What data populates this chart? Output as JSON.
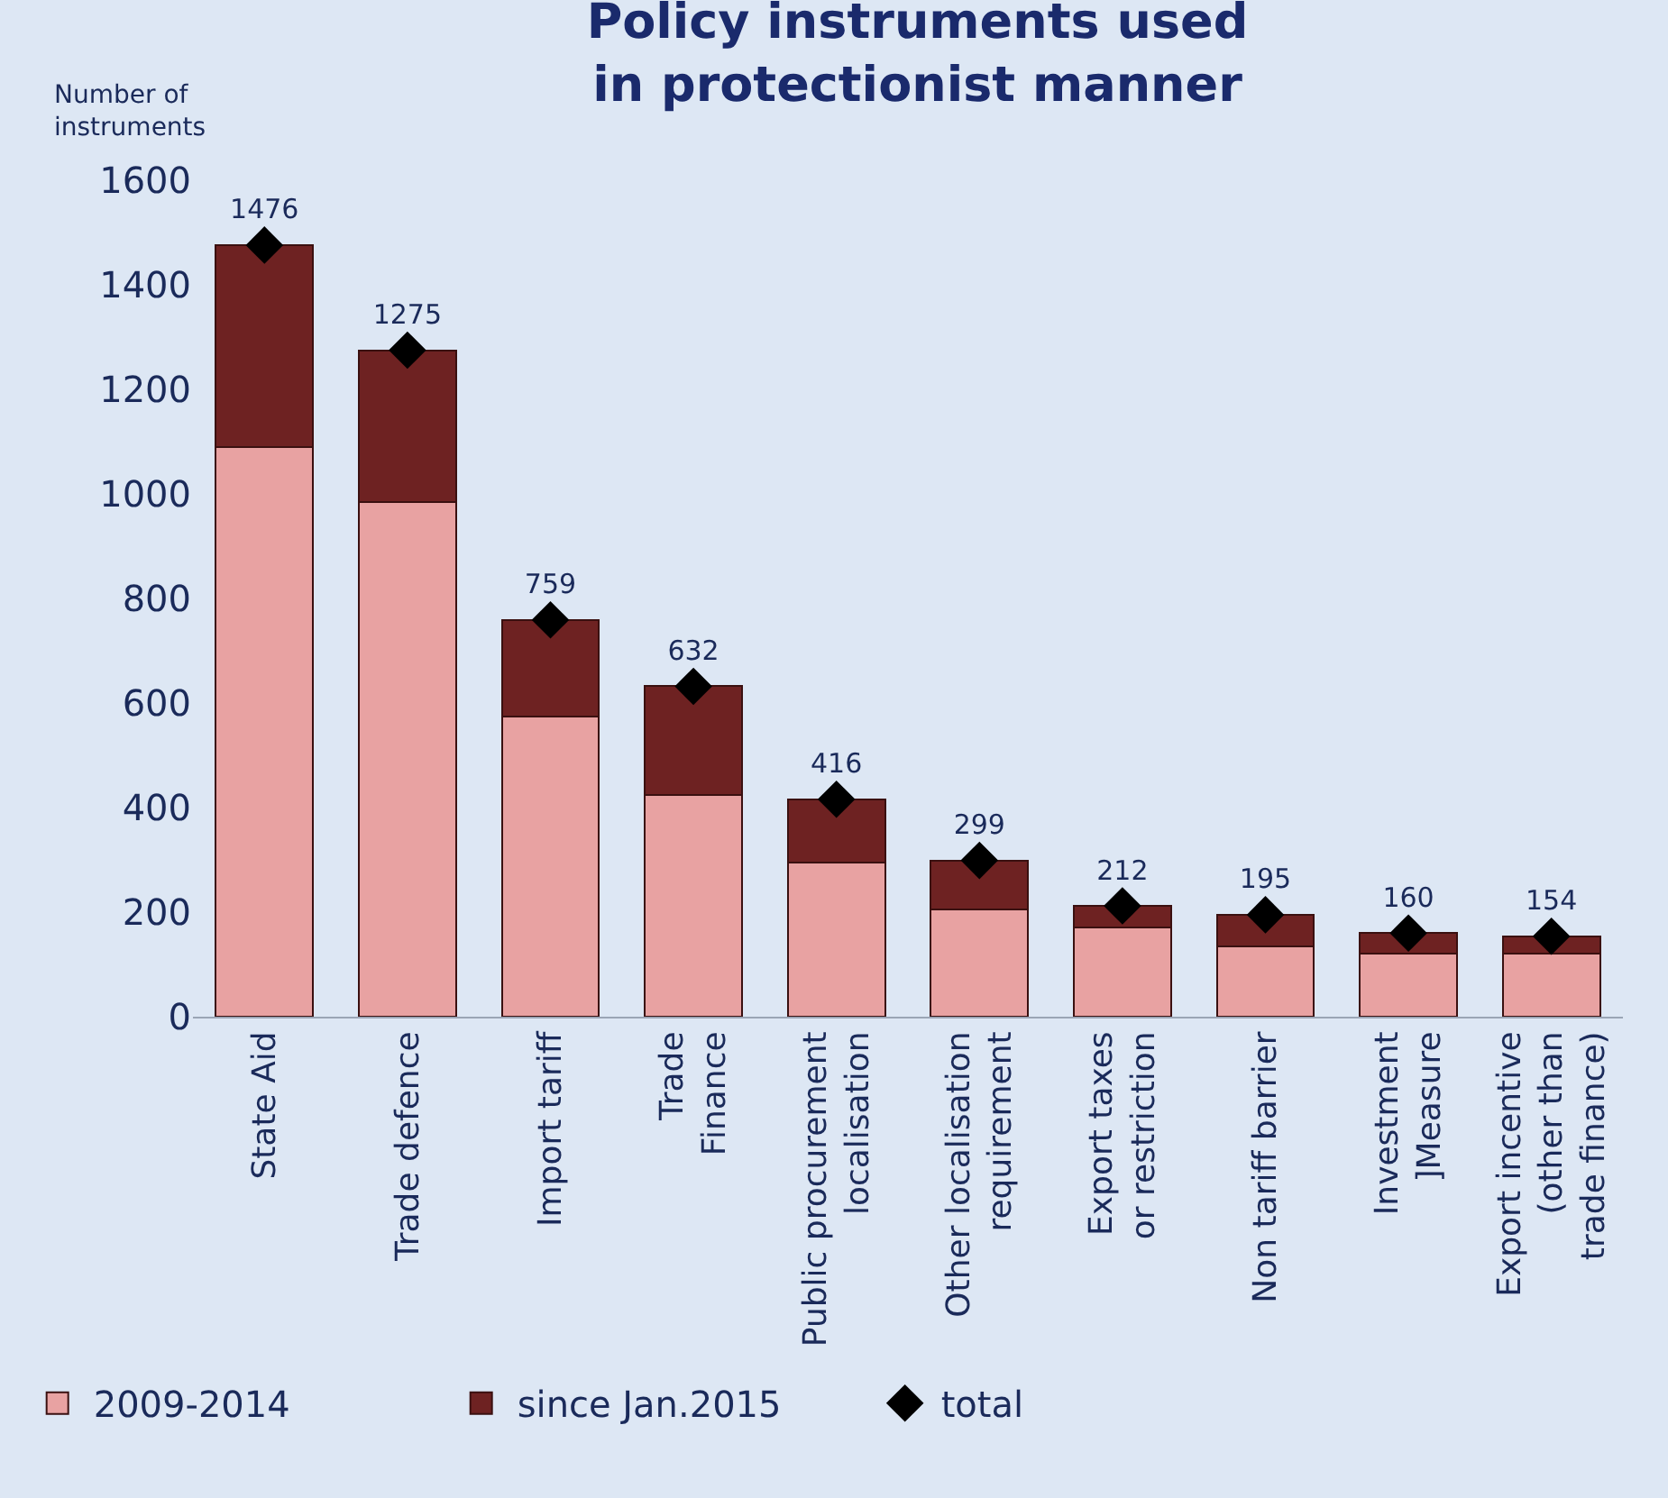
{
  "chart_data": {
    "type": "bar",
    "title": "Policy instruments used\nin protectionist manner",
    "ylabel": "Number of\ninstruments",
    "categories": [
      "State Aid",
      "Trade defence",
      "Import tariff",
      "Trade\nFinance",
      "Public procurement\nlocalisation",
      "Other localisation\nrequirement",
      "Export taxes\nor restriction",
      "Non tariff barrier",
      "Investment\n]Measure",
      "Export incentive\n(other than\ntrade finance)"
    ],
    "stacked": true,
    "series": [
      {
        "name": "2009-2014",
        "color": "#e8a2a2",
        "values": [
          1090,
          985,
          575,
          425,
          295,
          205,
          170,
          135,
          120,
          120
        ]
      },
      {
        "name": "since Jan.2015",
        "color": "#6e2222",
        "values": [
          386,
          290,
          184,
          207,
          121,
          94,
          42,
          60,
          40,
          34
        ]
      },
      {
        "name": "total",
        "type": "scatter",
        "marker": "diamond",
        "color": "#000000",
        "values": [
          1476,
          1275,
          759,
          632,
          416,
          299,
          212,
          195,
          160,
          154
        ],
        "value_labels": [
          "1476",
          "1275",
          "759",
          "632",
          "416",
          "299",
          "212",
          "195",
          "160",
          "154"
        ]
      }
    ],
    "ylim": [
      0,
      1600
    ],
    "yticks": [
      0,
      200,
      400,
      600,
      800,
      1000,
      1200,
      1400,
      1600
    ],
    "grid": false,
    "legend": "bottom left"
  }
}
